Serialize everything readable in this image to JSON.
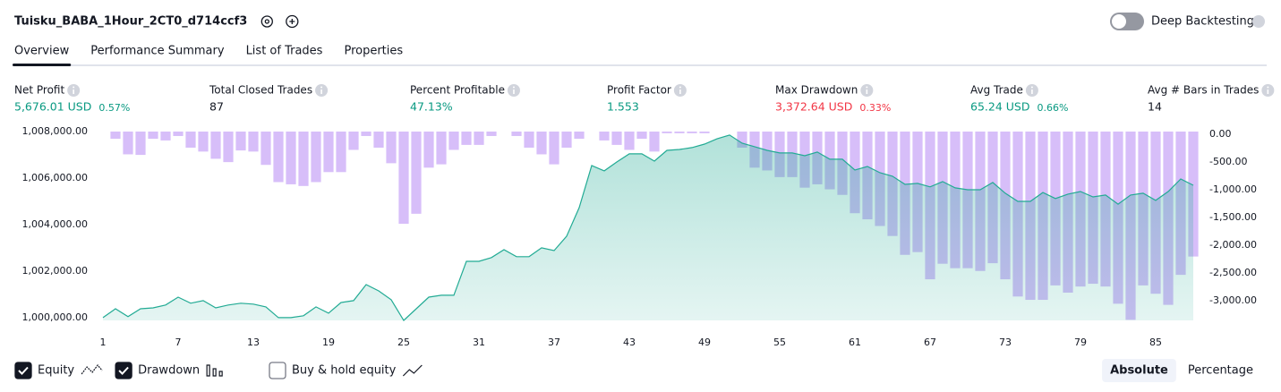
{
  "header": {
    "title": "Tuisku_BABA_1Hour_2CT0_d714ccf3",
    "deep_backtesting": "Deep Backtesting"
  },
  "tabs": [
    "Overview",
    "Performance Summary",
    "List of Trades",
    "Properties"
  ],
  "active_tab": 0,
  "stats": [
    {
      "label": "Net Profit",
      "value": "5,676.01 USD",
      "percent": "0.57%",
      "color": "#089981"
    },
    {
      "label": "Total Closed Trades",
      "value": "87",
      "color": "#131722"
    },
    {
      "label": "Percent Profitable",
      "value": "47.13%",
      "color": "#089981"
    },
    {
      "label": "Profit Factor",
      "value": "1.553",
      "color": "#089981"
    },
    {
      "label": "Max Drawdown",
      "value": "3,372.64 USD",
      "percent": "0.33%",
      "color": "#f23645"
    },
    {
      "label": "Avg Trade",
      "value": "65.24 USD",
      "percent": "0.66%",
      "color": "#089981"
    },
    {
      "label": "Avg # Bars in Trades",
      "value": "14",
      "color": "#131722"
    }
  ],
  "chart_data": {
    "type": "line",
    "x": [
      1,
      2,
      3,
      4,
      5,
      6,
      7,
      8,
      9,
      10,
      11,
      12,
      13,
      14,
      15,
      16,
      17,
      18,
      19,
      20,
      21,
      22,
      23,
      24,
      25,
      26,
      27,
      28,
      29,
      30,
      31,
      32,
      33,
      34,
      35,
      36,
      37,
      38,
      39,
      40,
      41,
      42,
      43,
      44,
      45,
      46,
      47,
      48,
      49,
      50,
      51,
      52,
      53,
      54,
      55,
      56,
      57,
      58,
      59,
      60,
      61,
      62,
      63,
      64,
      65,
      66,
      67,
      68,
      69,
      70,
      71,
      72,
      73,
      74,
      75,
      76,
      77,
      78,
      79,
      80,
      81,
      82,
      83,
      84,
      85,
      86,
      87,
      88
    ],
    "xlim": [
      1,
      88
    ],
    "xticks": [
      1,
      7,
      13,
      19,
      25,
      31,
      37,
      43,
      49,
      55,
      61,
      67,
      73,
      79,
      85
    ],
    "ylim": [
      999880,
      1008000
    ],
    "yticks": [
      {
        "value": 1000000,
        "label": "1,000,000.00"
      },
      {
        "value": 1002000,
        "label": "1,002,000.00"
      },
      {
        "value": 1004000,
        "label": "1,004,000.00"
      },
      {
        "value": 1006000,
        "label": "1,006,000.00"
      },
      {
        "value": 1008000,
        "label": "1,008,000.00"
      }
    ],
    "y2lim": [
      -3400,
      0
    ],
    "y2ticks": [
      {
        "value": 0,
        "label": "0.00"
      },
      {
        "value": -500,
        "label": "-500.00"
      },
      {
        "value": -1000,
        "label": "-1,000.00"
      },
      {
        "value": -1500,
        "label": "-1,500.00"
      },
      {
        "value": -2000,
        "label": "-2,000.00"
      },
      {
        "value": -2500,
        "label": "-2,500.00"
      },
      {
        "value": -3000,
        "label": "-3,000.00"
      }
    ],
    "series": [
      {
        "name": "Equity",
        "type": "line",
        "color": "#22ab94",
        "checked": true,
        "values": [
          1000000,
          1000380,
          1000040,
          1000380,
          1000420,
          1000540,
          1000880,
          1000620,
          1000730,
          1000420,
          1000540,
          1000620,
          1000580,
          1000460,
          1000000,
          1000000,
          1000080,
          1000460,
          1000190,
          1000650,
          1000730,
          1001420,
          1001150,
          1000770,
          999880,
          1000380,
          1000880,
          1000960,
          1000960,
          1002420,
          1002420,
          1002580,
          1002920,
          1002620,
          1002620,
          1003000,
          1002880,
          1003500,
          1004730,
          1006540,
          1006310,
          1006690,
          1007040,
          1007040,
          1006730,
          1007190,
          1007230,
          1007310,
          1007460,
          1007690,
          1007850,
          1007500,
          1007350,
          1007190,
          1007080,
          1007080,
          1006960,
          1007120,
          1006810,
          1006810,
          1006350,
          1006500,
          1006230,
          1006080,
          1005730,
          1005770,
          1005620,
          1005850,
          1005580,
          1005500,
          1005500,
          1005810,
          1005350,
          1005000,
          1005000,
          1005380,
          1005120,
          1005310,
          1005420,
          1005190,
          1005270,
          1004880,
          1005270,
          1005350,
          1005040,
          1005420,
          1005960,
          1005690
        ]
      },
      {
        "name": "Drawdown",
        "type": "bar",
        "axis": "y2",
        "color": "#c9a8f7",
        "checked": true,
        "values": [
          0,
          -130,
          -410,
          -420,
          -130,
          -160,
          -80,
          -290,
          -360,
          -490,
          -550,
          -340,
          -360,
          -600,
          -910,
          -950,
          -980,
          -910,
          -730,
          -730,
          -330,
          -80,
          -290,
          -570,
          -1660,
          -1480,
          -650,
          -590,
          -330,
          -240,
          -240,
          -80,
          0,
          -80,
          -290,
          -410,
          -590,
          -290,
          -130,
          0,
          -160,
          -240,
          -330,
          -130,
          -360,
          -30,
          -30,
          -30,
          -30,
          0,
          0,
          -290,
          -650,
          -700,
          -820,
          -820,
          -1010,
          -950,
          -1040,
          -1140,
          -1470,
          -1580,
          -1700,
          -1880,
          -2220,
          -2170,
          -2660,
          -2380,
          -2460,
          -2460,
          -2510,
          -2370,
          -2660,
          -2970,
          -3030,
          -3030,
          -2770,
          -2900,
          -2790,
          -2740,
          -2790,
          -3100,
          -3390,
          -2770,
          -2920,
          -3120,
          -2580,
          -2250
        ]
      }
    ]
  },
  "buy_hold": {
    "label": "Buy & hold equity",
    "checked": false
  },
  "modes": [
    "Absolute",
    "Percentage"
  ],
  "active_mode": 0
}
